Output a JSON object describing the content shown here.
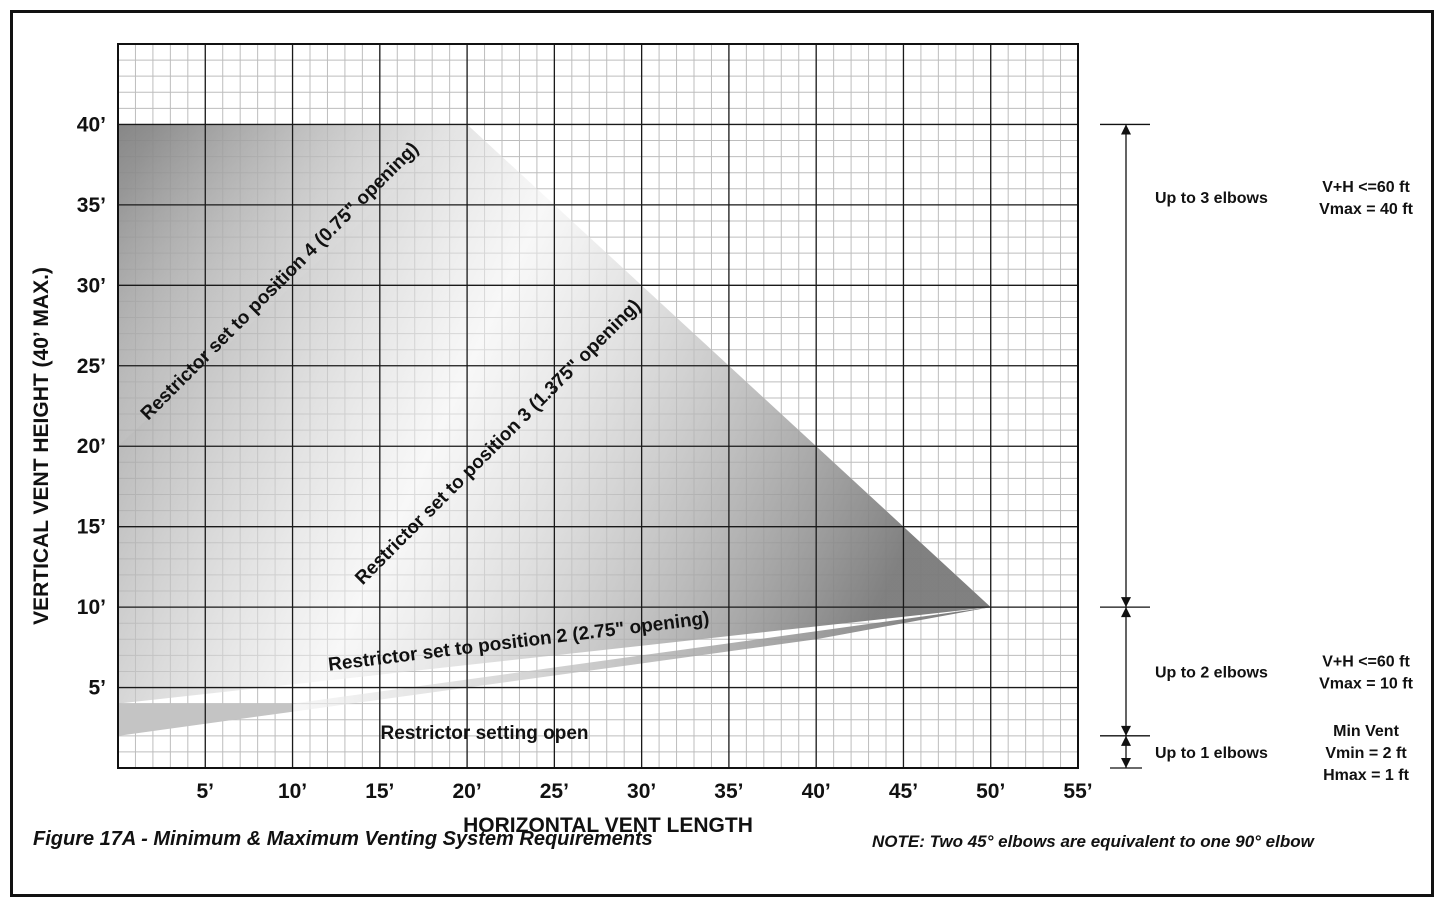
{
  "chart_data": {
    "type": "area",
    "xlabel": "HORIZONTAL VENT LENGTH",
    "ylabel": "VERTICAL VENT HEIGHT (40’ MAX.)",
    "xlim": [
      0,
      55
    ],
    "ylim": [
      0,
      45
    ],
    "x_ticks": [
      {
        "value": 5,
        "label": "5’"
      },
      {
        "value": 10,
        "label": "10’"
      },
      {
        "value": 15,
        "label": "15’"
      },
      {
        "value": 20,
        "label": "20’"
      },
      {
        "value": 25,
        "label": "25’"
      },
      {
        "value": 30,
        "label": "30’"
      },
      {
        "value": 35,
        "label": "35’"
      },
      {
        "value": 40,
        "label": "40’"
      },
      {
        "value": 45,
        "label": "45’"
      },
      {
        "value": 50,
        "label": "50’"
      },
      {
        "value": 55,
        "label": "55’"
      }
    ],
    "y_ticks": [
      {
        "value": 5,
        "label": "5’"
      },
      {
        "value": 10,
        "label": "10’"
      },
      {
        "value": 15,
        "label": "15’"
      },
      {
        "value": 20,
        "label": "20’"
      },
      {
        "value": 25,
        "label": "25’"
      },
      {
        "value": 30,
        "label": "30’"
      },
      {
        "value": 35,
        "label": "35’"
      },
      {
        "value": 40,
        "label": "40’"
      }
    ],
    "grid": true,
    "regions": [
      {
        "name": "restrictor-open",
        "label": "Restrictor setting open",
        "polygon": [
          [
            0,
            2
          ],
          [
            0,
            4
          ],
          [
            10,
            4
          ],
          [
            10,
            3.5
          ]
        ],
        "label_at": [
          21,
          1.8
        ],
        "label_angle": 0
      },
      {
        "name": "position-2",
        "label": "Restrictor set to position 2 (2.75\" opening)",
        "polygon": [
          [
            10,
            3.5
          ],
          [
            10,
            4
          ],
          [
            50,
            10
          ],
          [
            40,
            8
          ]
        ],
        "label_at": [
          23,
          7.5
        ],
        "label_angle": -7
      },
      {
        "name": "position-3-4",
        "label": "Restrictor set to position 3 (1.375\" opening)",
        "polygon": [
          [
            0,
            4
          ],
          [
            0,
            40
          ],
          [
            20,
            40
          ],
          [
            50,
            10
          ]
        ],
        "label_at": [
          22,
          20
        ],
        "label_angle": -45
      },
      {
        "name": "position-4",
        "label": "Restrictor set to position 4 (0.75\" opening)",
        "polygon": [
          [
            0,
            20
          ],
          [
            0,
            40
          ],
          [
            20,
            40
          ]
        ],
        "label_at": [
          9.5,
          30
        ],
        "label_angle": -45
      }
    ],
    "requirements": [
      {
        "range": [
          10,
          40
        ],
        "elbows": "Up to 3 elbows",
        "lines": [
          "V+H <=60 ft",
          "Vmax = 40 ft"
        ]
      },
      {
        "range": [
          2,
          10
        ],
        "elbows": "Up to 2 elbows",
        "lines": [
          "V+H <=60 ft",
          "Vmax = 10 ft"
        ]
      },
      {
        "range": [
          0,
          2
        ],
        "elbows": "Up to 1 elbows",
        "lines": [
          "Min Vent",
          "Vmin = 2 ft",
          "Hmax = 1 ft"
        ]
      }
    ]
  },
  "captions": {
    "figure": "Figure 17A - Minimum & Maximum Venting System Requirements",
    "note": "NOTE: Two 45° elbows are equivalent to one 90° elbow"
  },
  "colors": {
    "grid_minor": "#bdbdbd",
    "grid_major": "#1a1a1a",
    "shade_dark": "#8a8a8a",
    "shade_light": "#f4f4f4"
  }
}
